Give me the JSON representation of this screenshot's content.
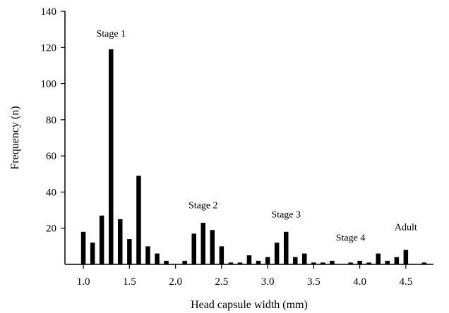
{
  "chart_data": {
    "type": "bar",
    "xlabel": "Head capsule width (mm)",
    "ylabel": "Frequency (n)",
    "xlim": [
      0.8,
      4.8
    ],
    "ylim": [
      0,
      140
    ],
    "x_ticks": [
      "1.0",
      "1.5",
      "2.0",
      "2.5",
      "3.0",
      "3.5",
      "4.0",
      "4.5"
    ],
    "y_ticks": [
      "20",
      "40",
      "60",
      "80",
      "100",
      "120",
      "140"
    ],
    "grid": false,
    "x": [
      1.0,
      1.1,
      1.2,
      1.3,
      1.4,
      1.5,
      1.6,
      1.7,
      1.8,
      1.9,
      2.1,
      2.2,
      2.3,
      2.4,
      2.5,
      2.6,
      2.7,
      2.8,
      2.9,
      3.0,
      3.1,
      3.2,
      3.3,
      3.4,
      3.5,
      3.6,
      3.7,
      3.9,
      4.0,
      4.1,
      4.2,
      4.3,
      4.4,
      4.5,
      4.7
    ],
    "values": [
      18,
      12,
      27,
      119,
      25,
      14,
      49,
      10,
      6,
      2,
      2,
      17,
      23,
      19,
      10,
      1,
      1,
      5,
      2,
      4,
      12,
      18,
      4,
      6,
      1,
      1,
      2,
      1,
      2,
      1,
      6,
      2,
      4,
      8,
      1
    ],
    "annotations": [
      {
        "text": "Stage 1",
        "x": 1.3,
        "y": 126
      },
      {
        "text": "Stage 2",
        "x": 2.3,
        "y": 31
      },
      {
        "text": "Stage 3",
        "x": 3.2,
        "y": 26
      },
      {
        "text": "Stage 4",
        "x": 3.9,
        "y": 13
      },
      {
        "text": "Adult",
        "x": 4.5,
        "y": 19
      }
    ]
  }
}
